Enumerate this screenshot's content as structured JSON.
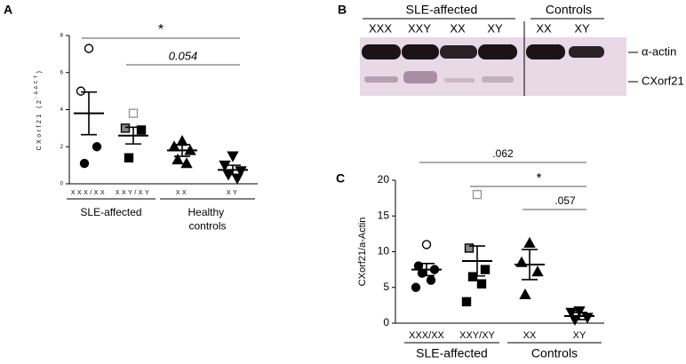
{
  "panels": [
    "A",
    "B",
    "C"
  ],
  "chart_data": [
    {
      "type": "dotplot",
      "y_label": [
        "CXorf21 (2",
        "-ΔΔCT",
        ")"
      ],
      "ylim": [
        0,
        8
      ],
      "yticks": [
        0,
        2,
        4,
        6,
        8
      ],
      "series": [
        {
          "name": "XXX/XX",
          "marker": "circle",
          "values": [
            7.3,
            5.0,
            2.0,
            1.1
          ],
          "styles": [
            "open",
            "open",
            "filled",
            "filled"
          ],
          "mean": 3.8,
          "error": 1.15
        },
        {
          "name": "XXY/XY",
          "marker": "square",
          "values": [
            3.8,
            3.0,
            2.9,
            1.4
          ],
          "styles": [
            "gray",
            "half",
            "filled",
            "filled"
          ],
          "mean": 2.6,
          "error": 0.45
        },
        {
          "name": "XX",
          "marker": "triangle",
          "values": [
            2.3,
            2.0,
            1.8,
            1.3,
            1.1
          ],
          "styles": [
            "filled",
            "filled",
            "filled",
            "filled",
            "filled"
          ],
          "mean": 1.8,
          "error": 0.32
        },
        {
          "name": "XY",
          "marker": "triangle-down",
          "values": [
            1.5,
            1.0,
            0.7,
            0.5,
            0.3
          ],
          "styles": [
            "filled",
            "filled",
            "filled",
            "filled",
            "filled"
          ],
          "mean": 0.75,
          "error": 0.25
        }
      ],
      "groups": [
        {
          "label": "SLE-affected",
          "from": 0,
          "to": 1
        },
        {
          "label": "Healthy controls",
          "from": 2,
          "to": 3
        }
      ],
      "brackets": [
        {
          "label": "*",
          "from": 0,
          "to": 3
        },
        {
          "label": "0.054",
          "from": 1,
          "to": 3
        }
      ]
    },
    {
      "type": "dotplot",
      "y_label": [
        "CXorf21/a-Actin"
      ],
      "ylim": [
        0,
        20
      ],
      "yticks": [
        0,
        5,
        10,
        15,
        20
      ],
      "series": [
        {
          "name": "XXX/XX",
          "marker": "circle",
          "values": [
            11,
            8,
            7.5,
            7,
            6,
            5
          ],
          "styles": [
            "open",
            "filled",
            "filled",
            "filled",
            "filled",
            "filled"
          ],
          "mean": 7.5,
          "error": 0.85
        },
        {
          "name": "XXY/XY",
          "marker": "square",
          "values": [
            18,
            10.5,
            7.5,
            6.5,
            5.5,
            3
          ],
          "styles": [
            "gray",
            "half",
            "filled",
            "filled",
            "filled",
            "filled"
          ],
          "mean": 8.7,
          "error": 2.1
        },
        {
          "name": "XX",
          "marker": "triangle",
          "values": [
            11.2,
            8.5,
            7.2,
            4
          ],
          "styles": [
            "filled",
            "filled",
            "filled",
            "filled"
          ],
          "mean": 8.2,
          "error": 2.1
        },
        {
          "name": "XY",
          "marker": "triangle-down",
          "values": [
            1.7,
            1.5,
            0.8,
            0.5
          ],
          "styles": [
            "filled",
            "filled",
            "filled",
            "filled"
          ],
          "mean": 1.0,
          "error": 0.5
        }
      ],
      "groups": [
        {
          "label": "SLE-affected",
          "from": 0,
          "to": 1
        },
        {
          "label": "Controls",
          "from": 2,
          "to": 3
        }
      ],
      "brackets": [
        {
          "label": ".062",
          "from": 0,
          "to": 3
        },
        {
          "label": "*",
          "from": 1,
          "to": 3
        },
        {
          "label": ".057",
          "from": 2,
          "to": 3
        }
      ]
    }
  ],
  "blot": {
    "lanes": [
      "XXX",
      "XXY",
      "XX",
      "XY",
      "XX",
      "XY"
    ],
    "groups": [
      "SLE-affected",
      "Controls"
    ],
    "bands": [
      "α-actin",
      "CXorf21"
    ]
  }
}
